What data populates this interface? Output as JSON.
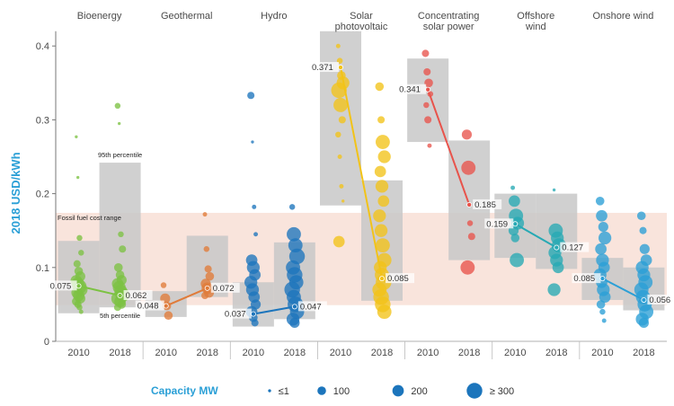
{
  "chart_data": {
    "type": "scatter",
    "title": "",
    "ylabel": "2018 USD/kWh",
    "ylim": [
      0,
      0.42
    ],
    "yticks": [
      "0",
      "0.1",
      "0.2",
      "0.3",
      "0.4"
    ],
    "fossil_fuel_range": {
      "label": "Fossil fuel cost range",
      "low": 0.049,
      "high": 0.174
    },
    "percentile_labels": {
      "p95": "95th percentile",
      "p5": "5th percentile"
    },
    "years": [
      "2010",
      "2018"
    ],
    "categories": [
      {
        "name": "Bioenergy",
        "color": "#7cc242",
        "years": [
          {
            "year": "2010",
            "average": 0.075,
            "label": "0.075",
            "p5": 0.038,
            "p95": 0.136,
            "points": [
              [
                0.277,
                1
              ],
              [
                0.222,
                1
              ],
              [
                0.14,
                3
              ],
              [
                0.12,
                3
              ],
              [
                0.105,
                4
              ],
              [
                0.095,
                5
              ],
              [
                0.088,
                6
              ],
              [
                0.082,
                7
              ],
              [
                0.078,
                8
              ],
              [
                0.074,
                9
              ],
              [
                0.07,
                8
              ],
              [
                0.066,
                7
              ],
              [
                0.062,
                7
              ],
              [
                0.058,
                6
              ],
              [
                0.054,
                5
              ],
              [
                0.05,
                4
              ],
              [
                0.046,
                3
              ],
              [
                0.04,
                2
              ]
            ]
          },
          {
            "year": "2018",
            "average": 0.062,
            "label": "0.062",
            "p5": 0.046,
            "p95": 0.242,
            "points": [
              [
                0.319,
                3
              ],
              [
                0.295,
                1
              ],
              [
                0.145,
                3
              ],
              [
                0.125,
                4
              ],
              [
                0.1,
                5
              ],
              [
                0.09,
                5
              ],
              [
                0.083,
                6
              ],
              [
                0.078,
                7
              ],
              [
                0.073,
                8
              ],
              [
                0.068,
                8
              ],
              [
                0.063,
                9
              ],
              [
                0.058,
                9
              ],
              [
                0.054,
                7
              ],
              [
                0.05,
                5
              ],
              [
                0.046,
                4
              ]
            ]
          }
        ]
      },
      {
        "name": "Geothermal",
        "color": "#e07b39",
        "years": [
          {
            "year": "2010",
            "average": 0.048,
            "label": "0.048",
            "p5": 0.033,
            "p95": 0.068,
            "points": [
              [
                0.076,
                3
              ],
              [
                0.058,
                6
              ],
              [
                0.048,
                5
              ],
              [
                0.035,
                5
              ]
            ]
          },
          {
            "year": "2018",
            "average": 0.072,
            "label": "0.072",
            "p5": 0.06,
            "p95": 0.143,
            "points": [
              [
                0.172,
                2
              ],
              [
                0.125,
                3
              ],
              [
                0.098,
                4
              ],
              [
                0.088,
                5
              ],
              [
                0.078,
                6
              ],
              [
                0.072,
                7
              ],
              [
                0.066,
                6
              ],
              [
                0.062,
                4
              ]
            ]
          }
        ]
      },
      {
        "name": "Hydro",
        "color": "#1c75bc",
        "years": [
          {
            "year": "2010",
            "average": 0.037,
            "label": "0.037",
            "p5": 0.02,
            "p95": 0.08,
            "points": [
              [
                0.333,
                4
              ],
              [
                0.27,
                1
              ],
              [
                0.182,
                2
              ],
              [
                0.145,
                2
              ],
              [
                0.11,
                7
              ],
              [
                0.1,
                8
              ],
              [
                0.09,
                7
              ],
              [
                0.08,
                8
              ],
              [
                0.07,
                8
              ],
              [
                0.06,
                7
              ],
              [
                0.05,
                6
              ],
              [
                0.04,
                7
              ],
              [
                0.032,
                5
              ],
              [
                0.025,
                4
              ]
            ]
          },
          {
            "year": "2018",
            "average": 0.047,
            "label": "0.047",
            "p5": 0.03,
            "p95": 0.134,
            "points": [
              [
                0.182,
                3
              ],
              [
                0.145,
                9
              ],
              [
                0.13,
                9
              ],
              [
                0.115,
                10
              ],
              [
                0.1,
                9
              ],
              [
                0.09,
                10
              ],
              [
                0.08,
                9
              ],
              [
                0.07,
                10
              ],
              [
                0.06,
                9
              ],
              [
                0.05,
                10
              ],
              [
                0.04,
                9
              ],
              [
                0.03,
                8
              ],
              [
                0.025,
                6
              ]
            ]
          }
        ]
      },
      {
        "name": "Solar photovoltaic",
        "color": "#f2c318",
        "years": [
          {
            "year": "2010",
            "average": 0.371,
            "label": "0.371",
            "p5": 0.184,
            "p95": 0.42,
            "points": [
              [
                0.4,
                2
              ],
              [
                0.38,
                3
              ],
              [
                0.36,
                5
              ],
              [
                0.35,
                8
              ],
              [
                0.34,
                10
              ],
              [
                0.32,
                9
              ],
              [
                0.3,
                4
              ],
              [
                0.28,
                3
              ],
              [
                0.25,
                2
              ],
              [
                0.21,
                2
              ],
              [
                0.19,
                1
              ],
              [
                0.135,
                7
              ]
            ]
          },
          {
            "year": "2018",
            "average": 0.085,
            "label": "0.085",
            "p5": 0.055,
            "p95": 0.218,
            "points": [
              [
                0.345,
                5
              ],
              [
                0.3,
                4
              ],
              [
                0.27,
                9
              ],
              [
                0.25,
                8
              ],
              [
                0.23,
                7
              ],
              [
                0.21,
                8
              ],
              [
                0.19,
                7
              ],
              [
                0.17,
                8
              ],
              [
                0.15,
                8
              ],
              [
                0.13,
                9
              ],
              [
                0.11,
                9
              ],
              [
                0.1,
                8
              ],
              [
                0.09,
                9
              ],
              [
                0.08,
                10
              ],
              [
                0.07,
                9
              ],
              [
                0.06,
                10
              ],
              [
                0.05,
                10
              ],
              [
                0.04,
                9
              ]
            ]
          }
        ]
      },
      {
        "name": "Concentrating solar power",
        "color": "#e8534b",
        "years": [
          {
            "year": "2010",
            "average": 0.341,
            "label": "0.341",
            "p5": 0.27,
            "p95": 0.383,
            "points": [
              [
                0.39,
                4
              ],
              [
                0.365,
                4
              ],
              [
                0.35,
                5
              ],
              [
                0.335,
                3
              ],
              [
                0.32,
                3
              ],
              [
                0.3,
                4
              ],
              [
                0.265,
                2
              ]
            ]
          },
          {
            "year": "2018",
            "average": 0.185,
            "label": "0.185",
            "p5": 0.11,
            "p95": 0.272,
            "points": [
              [
                0.28,
                6
              ],
              [
                0.235,
                9
              ],
              [
                0.16,
                3
              ],
              [
                0.142,
                4
              ],
              [
                0.1,
                9
              ]
            ]
          }
        ]
      },
      {
        "name": "Offshore wind",
        "color": "#26a9b4",
        "years": [
          {
            "year": "2010",
            "average": 0.159,
            "label": "0.159",
            "p5": 0.113,
            "p95": 0.2,
            "points": [
              [
                0.208,
                2
              ],
              [
                0.19,
                7
              ],
              [
                0.17,
                9
              ],
              [
                0.16,
                8
              ],
              [
                0.15,
                6
              ],
              [
                0.14,
                5
              ],
              [
                0.11,
                9
              ]
            ]
          },
          {
            "year": "2018",
            "average": 0.127,
            "label": "0.127",
            "p5": 0.098,
            "p95": 0.2,
            "points": [
              [
                0.205,
                1
              ],
              [
                0.15,
                9
              ],
              [
                0.14,
                8
              ],
              [
                0.13,
                9
              ],
              [
                0.12,
                8
              ],
              [
                0.11,
                8
              ],
              [
                0.1,
                7
              ],
              [
                0.07,
                8
              ]
            ]
          }
        ]
      },
      {
        "name": "Onshore wind",
        "color": "#2a9fd6",
        "years": [
          {
            "year": "2010",
            "average": 0.085,
            "label": "0.085",
            "p5": 0.056,
            "p95": 0.113,
            "points": [
              [
                0.19,
                5
              ],
              [
                0.17,
                7
              ],
              [
                0.155,
                6
              ],
              [
                0.14,
                8
              ],
              [
                0.125,
                7
              ],
              [
                0.11,
                8
              ],
              [
                0.1,
                7
              ],
              [
                0.09,
                8
              ],
              [
                0.08,
                7
              ],
              [
                0.07,
                8
              ],
              [
                0.06,
                7
              ],
              [
                0.05,
                5
              ],
              [
                0.04,
                3
              ],
              [
                0.028,
                2
              ]
            ]
          },
          {
            "year": "2018",
            "average": 0.056,
            "label": "0.056",
            "p5": 0.042,
            "p95": 0.1,
            "points": [
              [
                0.17,
                5
              ],
              [
                0.15,
                4
              ],
              [
                0.125,
                6
              ],
              [
                0.11,
                7
              ],
              [
                0.1,
                8
              ],
              [
                0.09,
                8
              ],
              [
                0.08,
                9
              ],
              [
                0.07,
                9
              ],
              [
                0.06,
                9
              ],
              [
                0.05,
                9
              ],
              [
                0.04,
                9
              ],
              [
                0.03,
                8
              ],
              [
                0.025,
                6
              ]
            ]
          }
        ]
      }
    ],
    "legend": {
      "title": "Capacity MW",
      "items": [
        {
          "label": "≤1",
          "size": 1
        },
        {
          "label": "100",
          "size": 5
        },
        {
          "label": "200",
          "size": 7
        },
        {
          "label": "≥ 300",
          "size": 10
        }
      ]
    }
  },
  "colors": {
    "axis_label": "#2a9fd6",
    "box": "#c8c8c8",
    "fossil_band": "#f9e4dc"
  }
}
